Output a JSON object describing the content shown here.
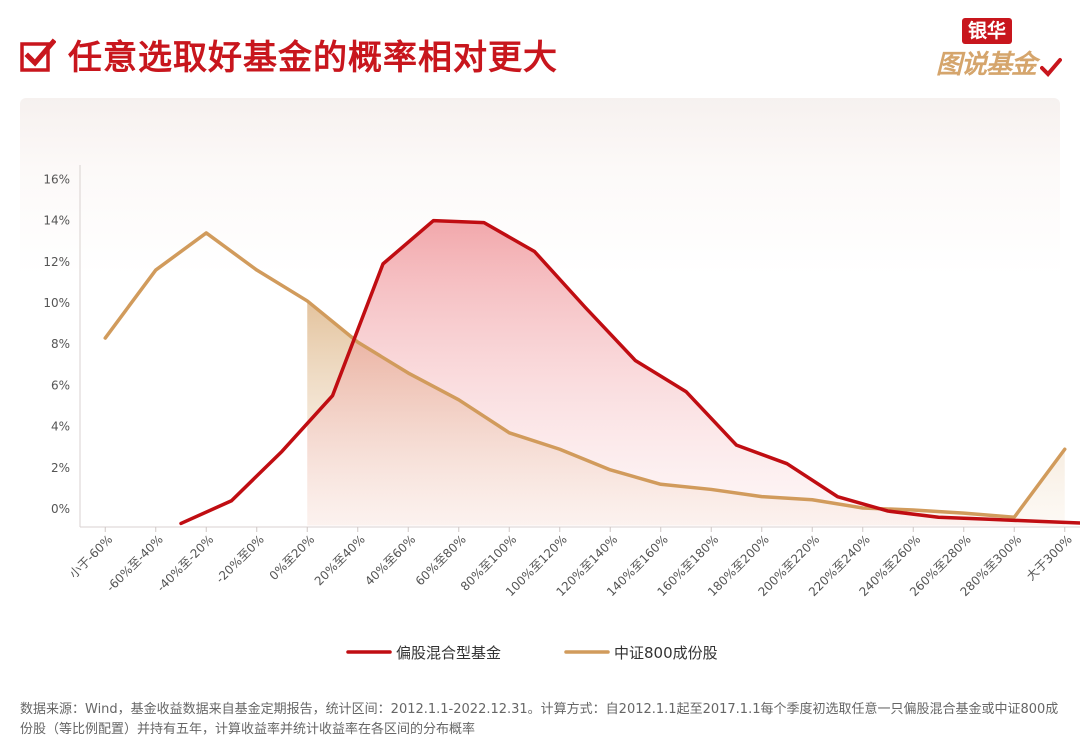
{
  "header": {
    "title": "任意选取好基金的概率相对更大",
    "logo_top": "银华",
    "logo_bottom": "图说基金"
  },
  "colors": {
    "title_red": "#c8161d",
    "series_red": "#c00d12",
    "series_tan": "#d19b5c",
    "logo_gold": "#d5a56c"
  },
  "chart_data": {
    "type": "line",
    "categories": [
      "小于-60%",
      "-60%至-40%",
      "-40%至-20%",
      "-20%至0%",
      "0%至20%",
      "20%至40%",
      "40%至60%",
      "60%至80%",
      "80%至100%",
      "100%至120%",
      "120%至140%",
      "140%至160%",
      "160%至180%",
      "180%至200%",
      "200%至220%",
      "220%至240%",
      "240%至260%",
      "260%至280%",
      "280%至300%",
      "大于300%"
    ],
    "y_ticks": [
      "0%",
      "2%",
      "4%",
      "6%",
      "8%",
      "10%",
      "12%",
      "14%",
      "16%"
    ],
    "ylim": [
      0,
      16
    ],
    "y_unit": "%",
    "grid": false,
    "legend_position": "bottom",
    "series": [
      {
        "name": "偏股混合型基金",
        "x": [
          2.0,
          3.0,
          4.0,
          5.0,
          6.0,
          7.0,
          8.0,
          9.0,
          10.0,
          11.0,
          12.0,
          13.0,
          14.0,
          15.0,
          16.0,
          17.0,
          18.0,
          19.0,
          20.0
        ],
        "values": [
          -0.7,
          0.4,
          2.8,
          5.5,
          11.9,
          14.0,
          13.9,
          12.5,
          9.8,
          7.2,
          5.7,
          3.1,
          2.2,
          0.6,
          -0.1,
          -0.4,
          -0.5,
          -0.6,
          -0.7
        ]
      },
      {
        "name": "中证800成份股",
        "x": [
          0.5,
          1.5,
          2.5,
          3.5,
          4.5,
          5.5,
          6.5,
          7.5,
          8.5,
          9.5,
          10.5,
          11.5,
          12.5,
          13.5,
          14.5,
          15.5,
          16.5,
          17.5,
          18.5,
          19.5
        ],
        "values": [
          8.3,
          11.6,
          13.4,
          11.6,
          10.1,
          8.1,
          6.6,
          5.3,
          3.7,
          2.9,
          1.9,
          1.2,
          0.95,
          0.6,
          0.45,
          0.05,
          -0.05,
          -0.2,
          -0.4,
          2.9
        ]
      }
    ],
    "red_fill_x_range": [
      4.5,
      19.5
    ],
    "tan_fill_x_range": [
      4.5,
      19.5
    ]
  },
  "footnote": "数据来源：Wind，基金收益数据来自基金定期报告，统计区间：2012.1.1-2022.12.31。计算方式：自2012.1.1起至2017.1.1每个季度初选取任意一只偏股混合基金或中证800成份股（等比例配置）并持有五年，计算收益率并统计收益率在各区间的分布概率"
}
